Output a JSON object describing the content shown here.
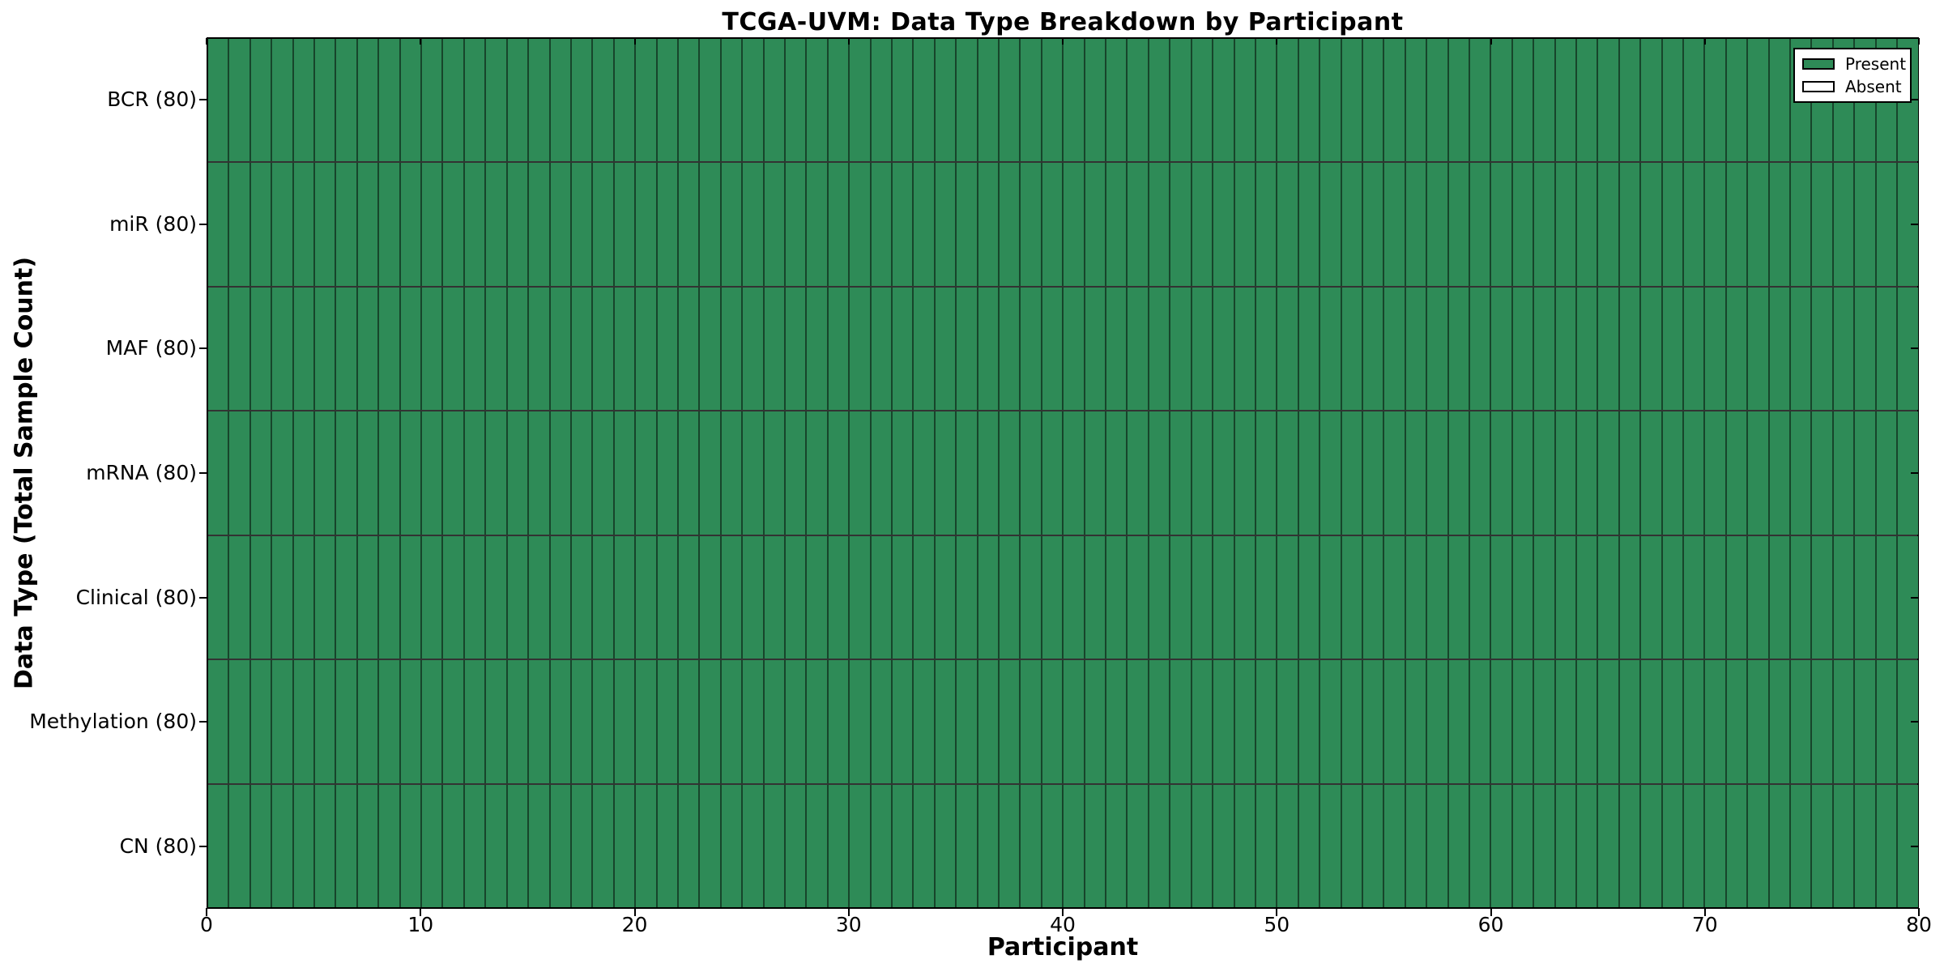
{
  "chart_data": {
    "type": "heatmap",
    "title": "TCGA-UVM: Data Type Breakdown by Participant",
    "xlabel": "Participant",
    "ylabel": "Data Type (Total Sample Count)",
    "xlim": [
      0,
      80
    ],
    "x_ticks": [
      0,
      10,
      20,
      30,
      40,
      50,
      60,
      70,
      80
    ],
    "n_participants": 80,
    "rows": [
      {
        "label": "BCR (80)",
        "data_type": "BCR",
        "total_samples": 80,
        "present_participants": 80,
        "absent_participants": 0
      },
      {
        "label": "miR (80)",
        "data_type": "miR",
        "total_samples": 80,
        "present_participants": 80,
        "absent_participants": 0
      },
      {
        "label": "MAF (80)",
        "data_type": "MAF",
        "total_samples": 80,
        "present_participants": 80,
        "absent_participants": 0
      },
      {
        "label": "mRNA (80)",
        "data_type": "mRNA",
        "total_samples": 80,
        "present_participants": 80,
        "absent_participants": 0
      },
      {
        "label": "Clinical (80)",
        "data_type": "Clinical",
        "total_samples": 80,
        "present_participants": 80,
        "absent_participants": 0
      },
      {
        "label": "Methylation (80)",
        "data_type": "Methylation",
        "total_samples": 80,
        "present_participants": 80,
        "absent_participants": 0
      },
      {
        "label": "CN (80)",
        "data_type": "CN",
        "total_samples": 80,
        "present_participants": 80,
        "absent_participants": 0
      }
    ],
    "legend": {
      "position": "upper right",
      "entries": [
        {
          "label": "Present",
          "color": "#2e8b57"
        },
        {
          "label": "Absent",
          "color": "#ffffff"
        }
      ]
    },
    "colors": {
      "present": "#2e8b57",
      "absent": "#ffffff",
      "edge": "#000000"
    },
    "grid": false
  }
}
